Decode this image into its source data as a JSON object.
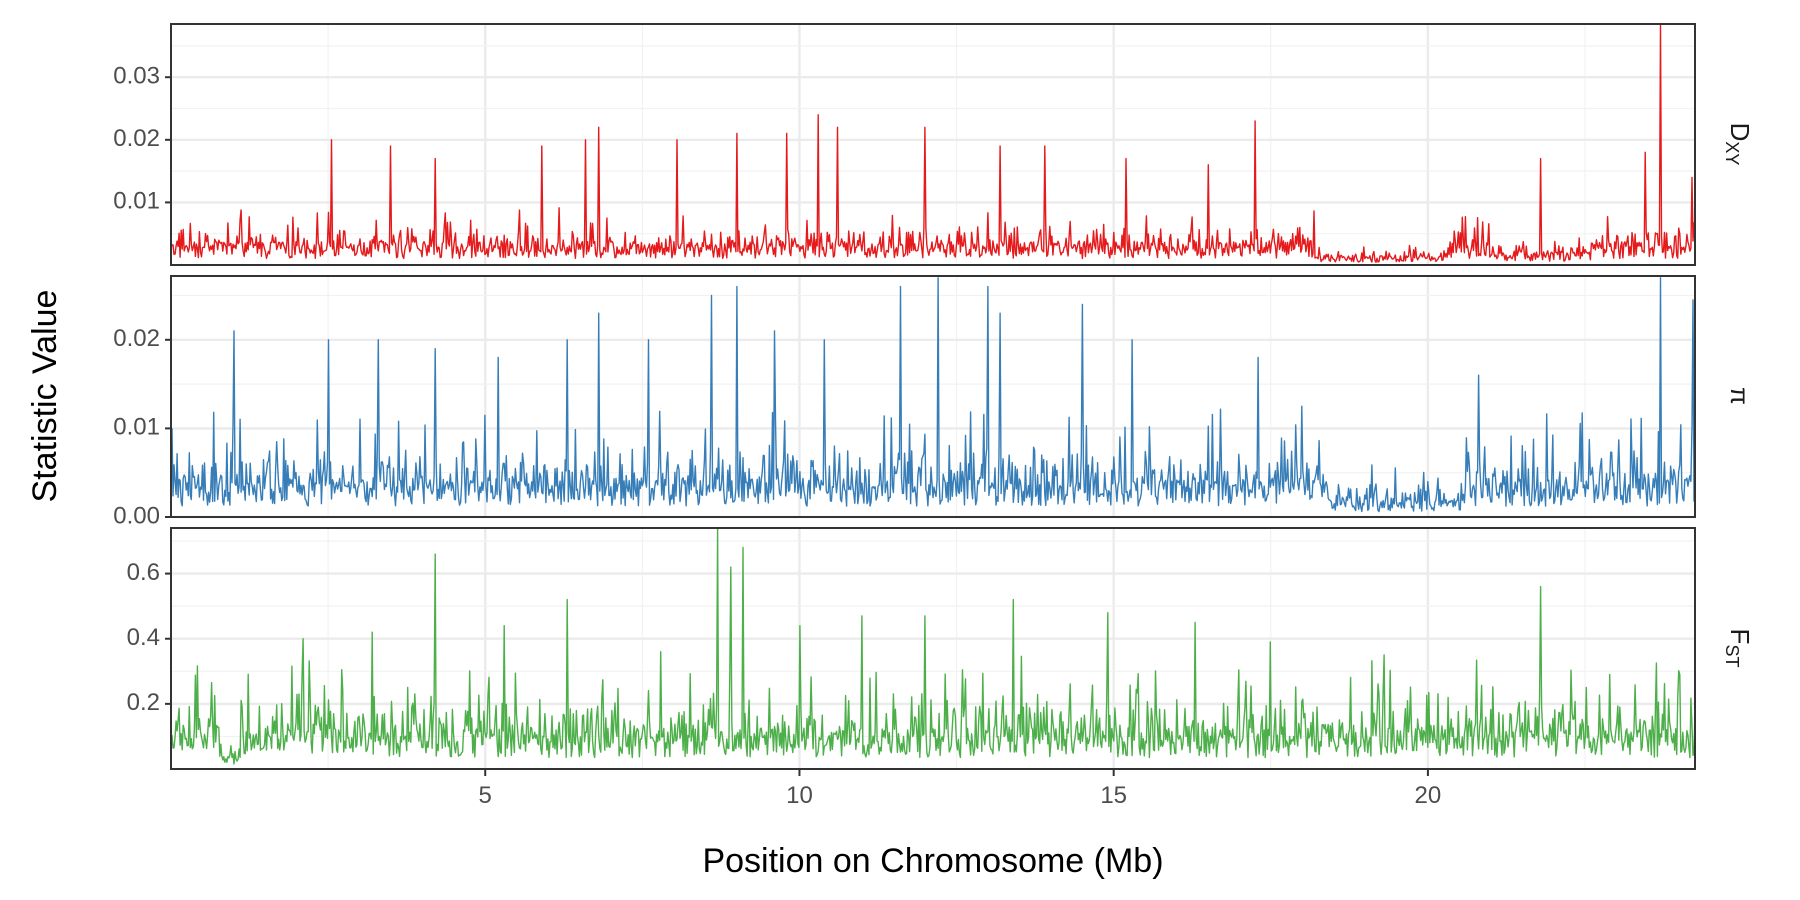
{
  "chart_data": {
    "type": "line",
    "xlabel": "Position on Chromosome (Mb)",
    "ylabel": "Statistic Value",
    "xlim": [
      0,
      24.25
    ],
    "x_ticks": [
      5,
      10,
      15,
      20
    ],
    "x_tick_labels": [
      "5",
      "10",
      "15",
      "20"
    ],
    "grid": true,
    "facets": [
      {
        "id": "dxy",
        "strip_label": "D",
        "strip_subscript": "XY",
        "color": "#e41a1c",
        "ylim": [
          0.0,
          0.0385
        ],
        "y_ticks": [
          0.01,
          0.02,
          0.03
        ],
        "y_tick_labels": [
          "0.01",
          "0.02",
          "0.03"
        ],
        "baseline": 0.003,
        "noise": 0.0034,
        "spikes": [
          [
            2.55,
            0.02
          ],
          [
            3.5,
            0.019
          ],
          [
            4.2,
            0.017
          ],
          [
            5.9,
            0.019
          ],
          [
            6.6,
            0.02
          ],
          [
            6.8,
            0.022
          ],
          [
            8.05,
            0.02
          ],
          [
            9.0,
            0.021
          ],
          [
            9.8,
            0.021
          ],
          [
            10.3,
            0.024
          ],
          [
            10.6,
            0.022
          ],
          [
            12.0,
            0.022
          ],
          [
            13.2,
            0.019
          ],
          [
            13.9,
            0.019
          ],
          [
            15.2,
            0.017
          ],
          [
            16.5,
            0.016
          ],
          [
            17.25,
            0.023
          ],
          [
            21.8,
            0.017
          ],
          [
            23.45,
            0.018
          ],
          [
            23.7,
            0.0385
          ],
          [
            24.2,
            0.014
          ]
        ],
        "low_regions": [
          [
            18.2,
            20.3,
            0.4
          ],
          [
            21.0,
            22.6,
            0.55
          ]
        ]
      },
      {
        "id": "pi",
        "strip_label": "π",
        "strip_subscript": "",
        "color": "#377eb8",
        "ylim": [
          0.0,
          0.0272
        ],
        "y_ticks": [
          0.0,
          0.01,
          0.02
        ],
        "y_tick_labels": [
          "0.00",
          "0.01",
          "0.02"
        ],
        "baseline": 0.0035,
        "noise": 0.0055,
        "spikes": [
          [
            1.0,
            0.021
          ],
          [
            2.5,
            0.02
          ],
          [
            3.3,
            0.02
          ],
          [
            4.2,
            0.019
          ],
          [
            5.2,
            0.018
          ],
          [
            6.3,
            0.02
          ],
          [
            6.8,
            0.023
          ],
          [
            7.6,
            0.02
          ],
          [
            8.6,
            0.025
          ],
          [
            9.0,
            0.026
          ],
          [
            9.6,
            0.021
          ],
          [
            10.4,
            0.02
          ],
          [
            11.6,
            0.026
          ],
          [
            12.2,
            0.027
          ],
          [
            13.0,
            0.026
          ],
          [
            13.2,
            0.023
          ],
          [
            14.5,
            0.024
          ],
          [
            15.3,
            0.02
          ],
          [
            17.3,
            0.018
          ],
          [
            20.8,
            0.016
          ],
          [
            23.7,
            0.027
          ],
          [
            24.22,
            0.0245
          ]
        ],
        "low_regions": [
          [
            18.4,
            20.6,
            0.5
          ]
        ]
      },
      {
        "id": "fst",
        "strip_label": "F",
        "strip_subscript": "ST",
        "color": "#4daf4a",
        "ylim": [
          0.0,
          0.74
        ],
        "y_ticks": [
          0.2,
          0.4,
          0.6
        ],
        "y_tick_labels": [
          "0.2",
          "0.4",
          "0.6"
        ],
        "baseline": 0.1,
        "noise": 0.15,
        "spikes": [
          [
            2.1,
            0.4
          ],
          [
            3.2,
            0.42
          ],
          [
            4.2,
            0.66
          ],
          [
            5.3,
            0.44
          ],
          [
            6.3,
            0.52
          ],
          [
            7.8,
            0.36
          ],
          [
            8.7,
            0.74
          ],
          [
            8.9,
            0.62
          ],
          [
            9.1,
            0.68
          ],
          [
            10.0,
            0.44
          ],
          [
            11.0,
            0.47
          ],
          [
            12.0,
            0.47
          ],
          [
            13.4,
            0.52
          ],
          [
            14.9,
            0.48
          ],
          [
            16.3,
            0.45
          ],
          [
            17.5,
            0.39
          ],
          [
            19.3,
            0.35
          ],
          [
            21.8,
            0.56
          ],
          [
            22.9,
            0.29
          ],
          [
            24.0,
            0.29
          ]
        ],
        "low_regions": [
          [
            0.8,
            1.1,
            0.4
          ]
        ]
      }
    ]
  }
}
